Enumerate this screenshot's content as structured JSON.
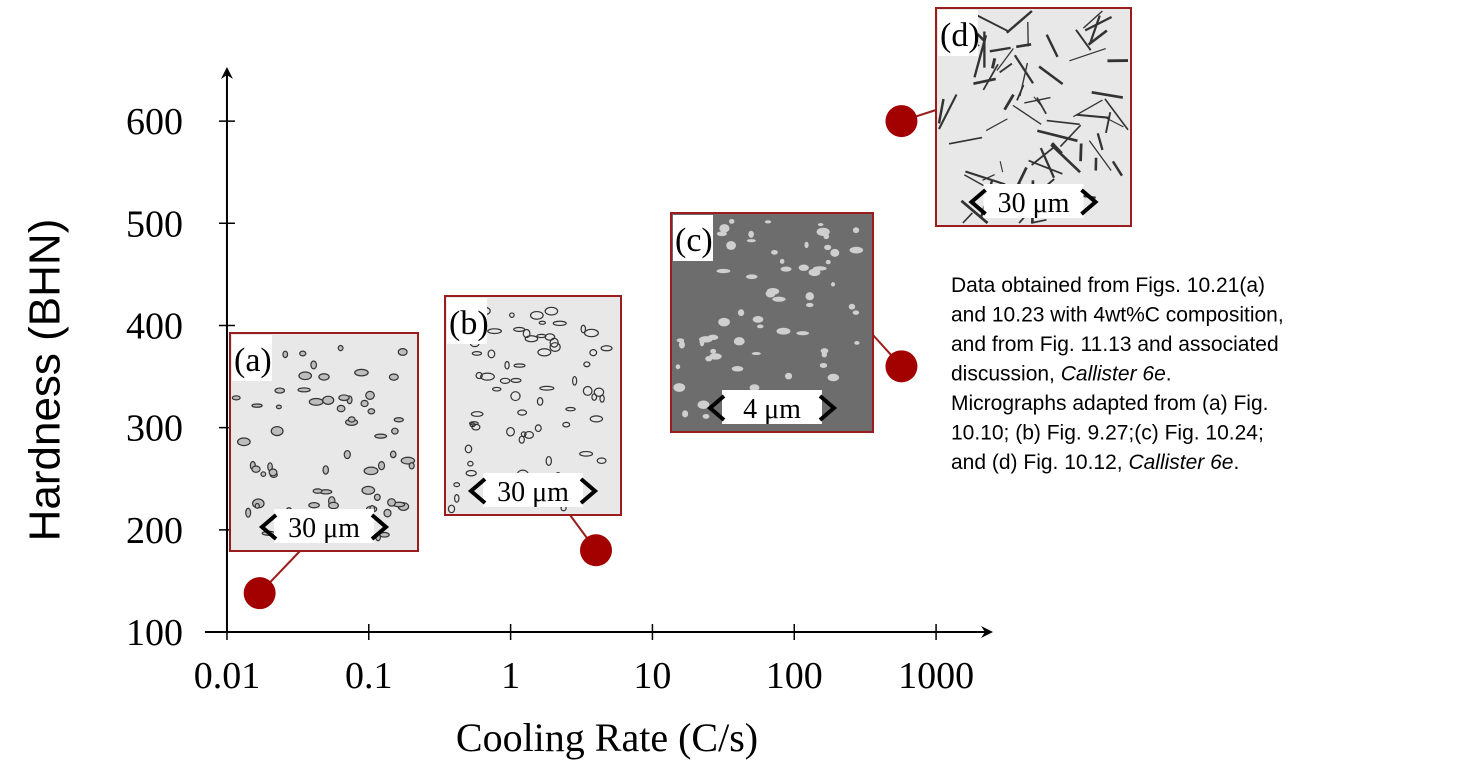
{
  "chart_data": {
    "type": "scatter",
    "x_label": "Cooling Rate (C/s)",
    "y_label": "Hardness (BHN)",
    "x_log": true,
    "xlim": [
      0.007,
      2400
    ],
    "ylim": [
      100,
      650
    ],
    "xticks": [
      0.01,
      0.1,
      1,
      10,
      100,
      1000
    ],
    "yticks": [
      100,
      200,
      300,
      400,
      500,
      600
    ],
    "color": "#a30000",
    "series": [
      {
        "name": null,
        "color": "#a30000",
        "x": [
          0.017,
          4,
          570,
          570
        ],
        "values": [
          138,
          180,
          360,
          600
        ]
      }
    ],
    "insets": [
      {
        "label": "(a)",
        "scale": "30 μm"
      },
      {
        "label": "(b)",
        "scale": "30 μm"
      },
      {
        "label": "(c)",
        "scale": "4 μm"
      },
      {
        "label": "(d)",
        "scale": "30 μm"
      }
    ],
    "note": [
      [
        "Data obtained from Figs. 10.21(a)"
      ],
      [
        "and 10.23 with 4wt%C composition,"
      ],
      [
        "and from Fig. 11.13 and associated"
      ],
      [
        "discussion, ",
        {
          "text": "Callister 6e",
          "italic": true
        },
        "."
      ],
      [
        "Micrographs adapted from (a) Fig."
      ],
      [
        "10.10; (b) Fig. 9.27;(c) Fig. 10.24;"
      ],
      [
        "and (d) Fig. 10.12, ",
        {
          "text": "Callister 6e",
          "italic": true
        },
        "."
      ]
    ]
  }
}
